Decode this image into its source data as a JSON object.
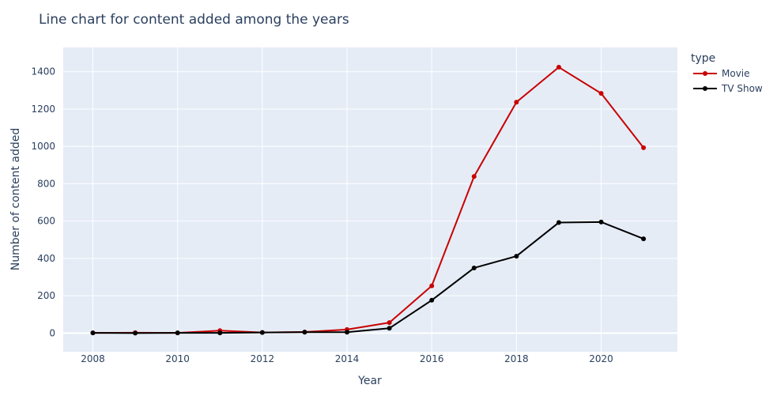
{
  "chart_data": {
    "type": "line",
    "title": "Line chart for content added among the years",
    "xlabel": "Year",
    "ylabel": "Number of content added",
    "xlim": [
      2007.3,
      2021.8
    ],
    "ylim": [
      -100,
      1530
    ],
    "xticks": [
      2008,
      2010,
      2012,
      2014,
      2016,
      2018,
      2020
    ],
    "yticks": [
      0,
      200,
      400,
      600,
      800,
      1000,
      1200,
      1400
    ],
    "grid": true,
    "legend_title": "type",
    "legend_position": "top-right",
    "colors": {
      "plot_bg": "#e5ecf6",
      "grid": "#ffffff",
      "text": "#2a3f5f"
    },
    "series": [
      {
        "name": "Movie",
        "color": "#c80000",
        "x": [
          2008,
          2009,
          2010,
          2011,
          2012,
          2013,
          2014,
          2015,
          2016,
          2017,
          2018,
          2019,
          2020,
          2021
        ],
        "y": [
          1,
          2,
          1,
          13,
          3,
          6,
          19,
          56,
          253,
          839,
          1237,
          1424,
          1284,
          993
        ]
      },
      {
        "name": "TV Show",
        "color": "#000000",
        "x": [
          2008,
          2009,
          2010,
          2011,
          2012,
          2013,
          2014,
          2015,
          2016,
          2017,
          2018,
          2019,
          2020,
          2021
        ],
        "y": [
          1,
          0,
          1,
          1,
          3,
          5,
          5,
          26,
          176,
          349,
          412,
          592,
          595,
          505
        ]
      }
    ]
  }
}
